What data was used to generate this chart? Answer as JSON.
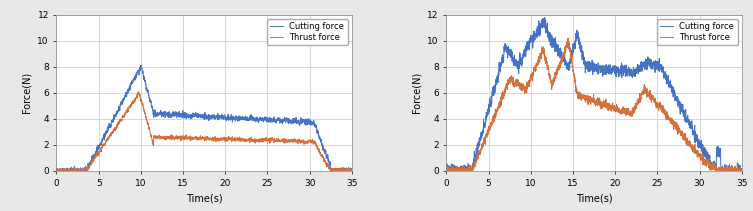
{
  "left": {
    "cutting_color": "#4472C4",
    "thrust_color": "#D4703C",
    "xlabel": "Time(s)",
    "ylabel": "Force(N)",
    "xlim": [
      0,
      35
    ],
    "ylim": [
      0,
      12
    ],
    "xticks": [
      0,
      5,
      10,
      15,
      20,
      25,
      30,
      35
    ],
    "yticks": [
      0,
      2,
      4,
      6,
      8,
      10,
      12
    ],
    "legend": [
      "Cutting force",
      "Thrust force"
    ]
  },
  "right": {
    "cutting_color": "#4472C4",
    "thrust_color": "#D4703C",
    "xlabel": "Time(s)",
    "ylabel": "Force(N)",
    "xlim": [
      0,
      35
    ],
    "ylim": [
      0,
      12
    ],
    "xticks": [
      0,
      5,
      10,
      15,
      20,
      25,
      30,
      35
    ],
    "yticks": [
      0,
      2,
      4,
      6,
      8,
      10,
      12
    ],
    "legend": [
      "Cutting force",
      "Thrust force"
    ]
  },
  "bg_color": "#ffffff",
  "grid_color": "#d0d0d0",
  "fig_bg": "#e8e8e8",
  "line_width": 0.7
}
